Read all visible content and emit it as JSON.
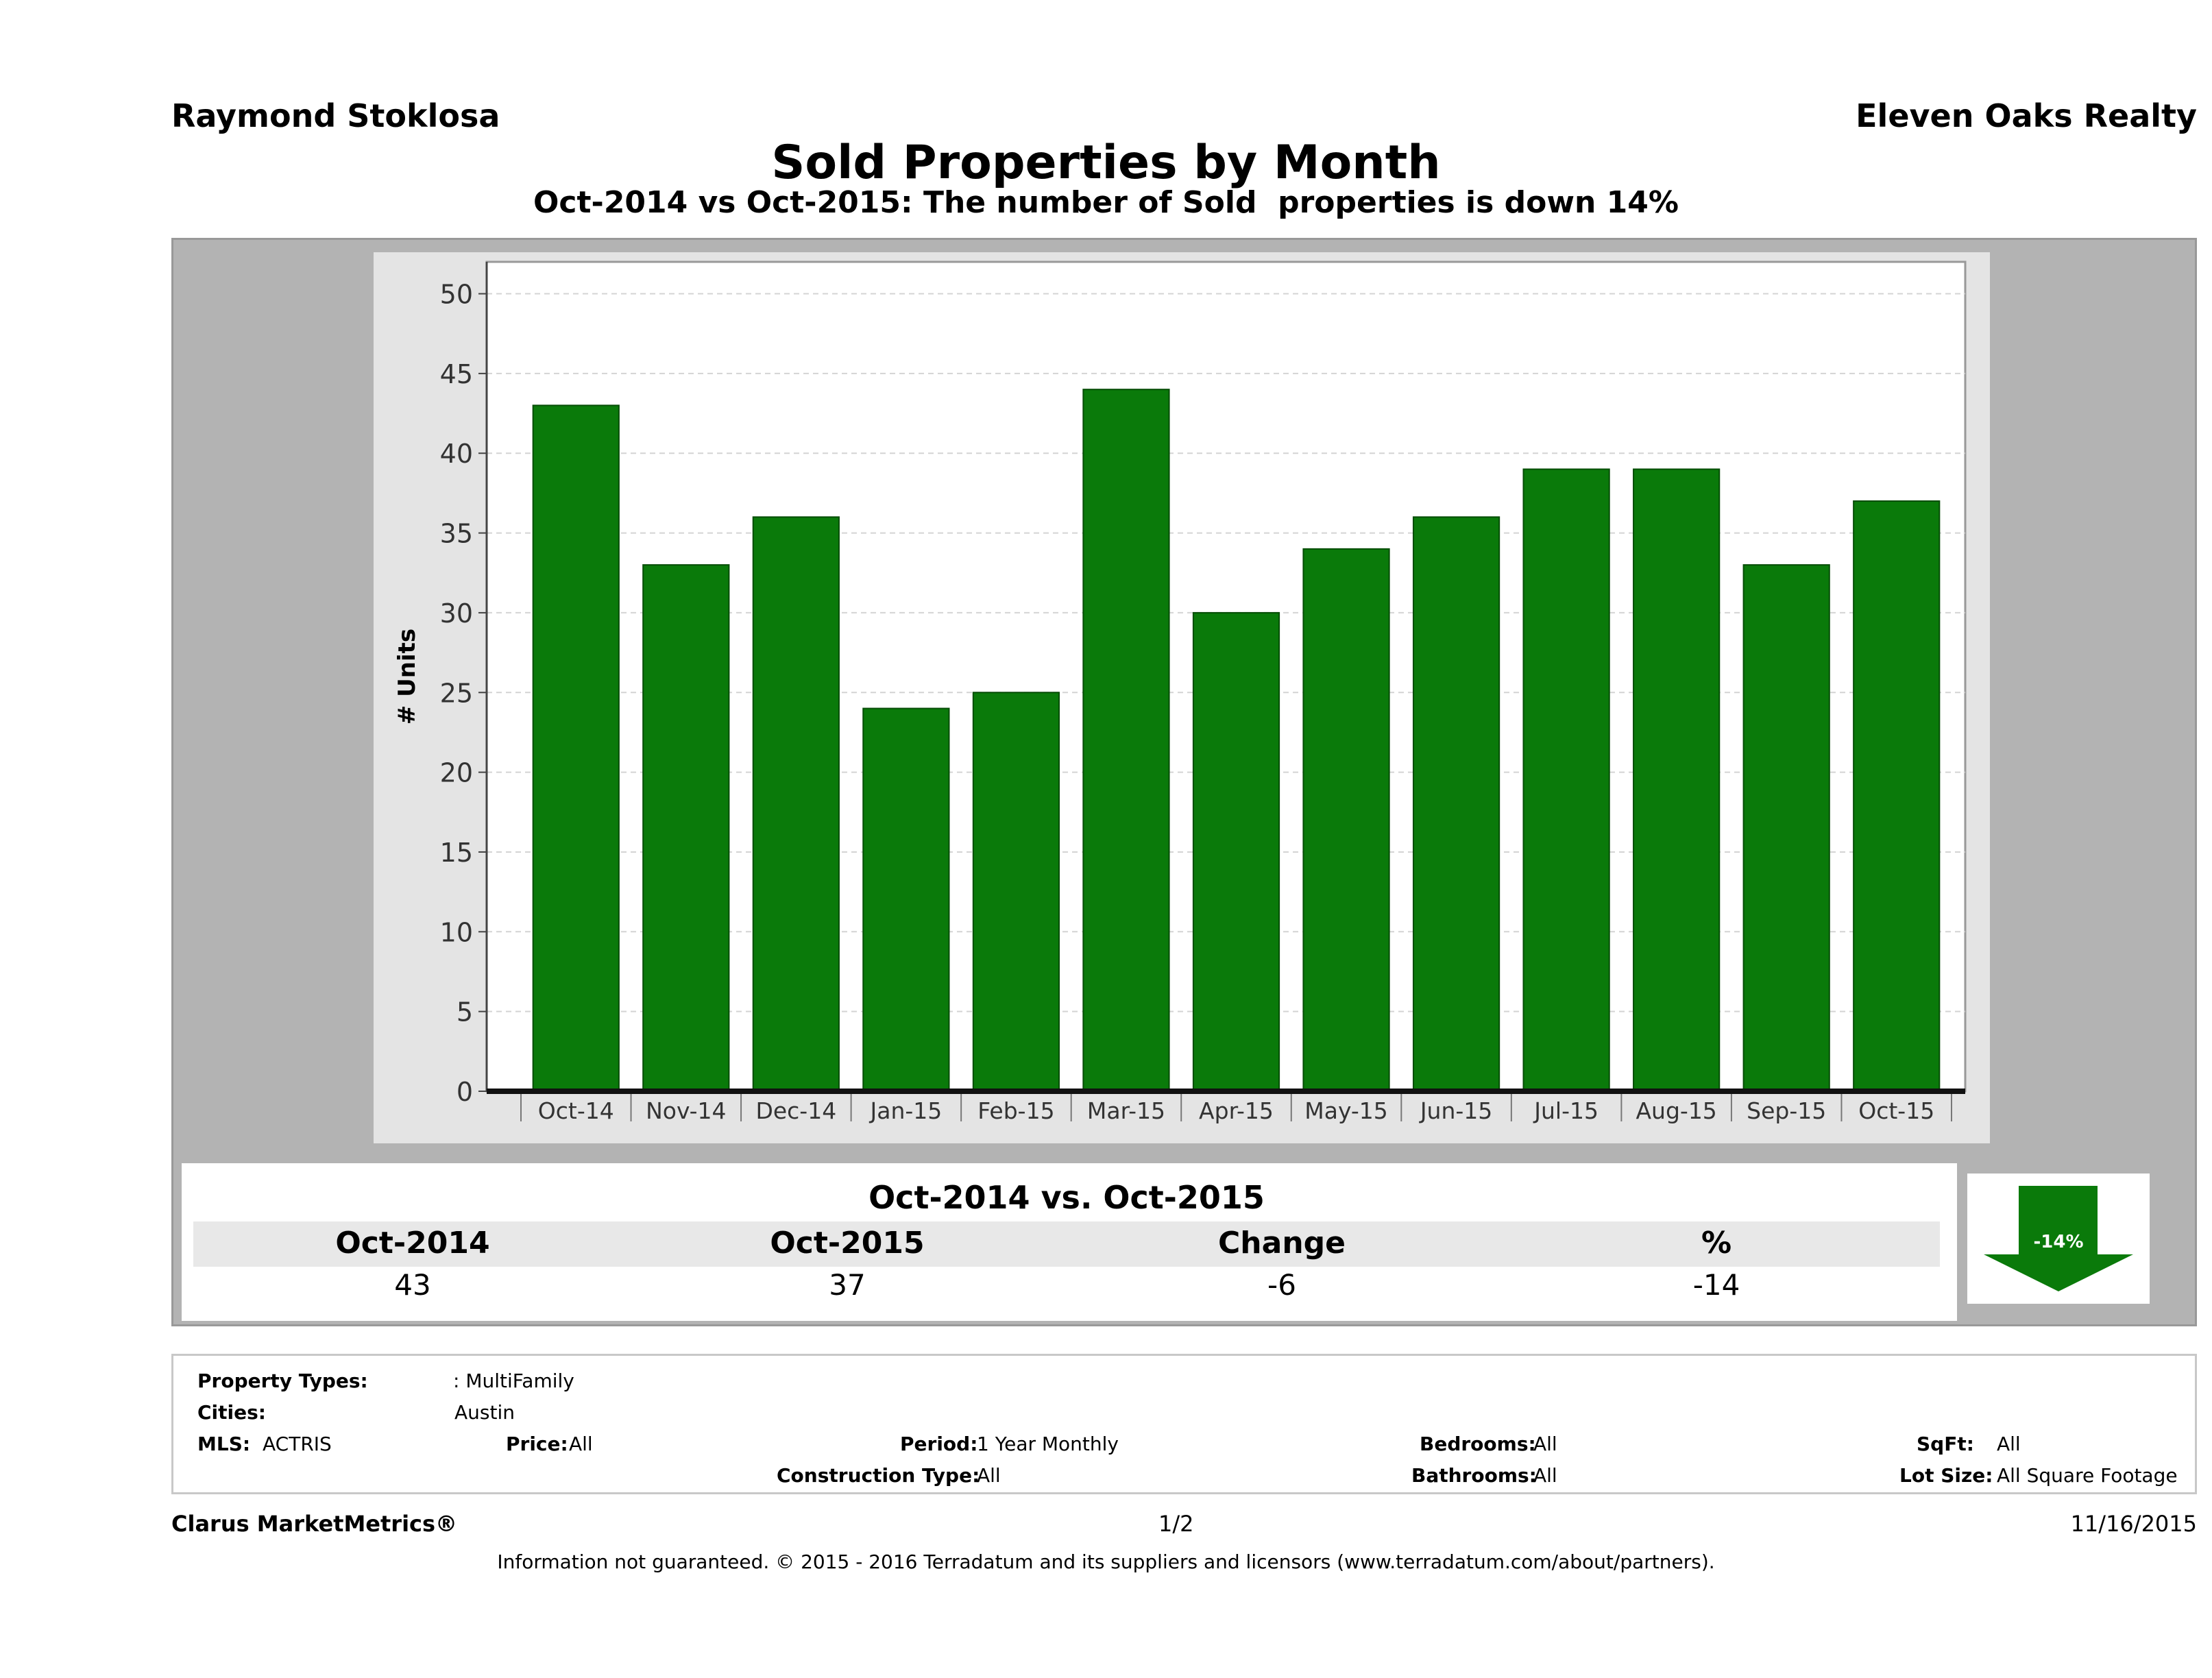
{
  "header": {
    "agent": "Raymond Stoklosa",
    "company": "Eleven Oaks Realty",
    "title": "Sold Properties by Month",
    "subtitle": "Oct-2014 vs Oct-2015: The number of Sold  properties is down 14%"
  },
  "chart_data": {
    "type": "bar",
    "categories": [
      "Oct-14",
      "Nov-14",
      "Dec-14",
      "Jan-15",
      "Feb-15",
      "Mar-15",
      "Apr-15",
      "May-15",
      "Jun-15",
      "Jul-15",
      "Aug-15",
      "Sep-15",
      "Oct-15"
    ],
    "values": [
      43,
      33,
      36,
      24,
      25,
      44,
      30,
      34,
      36,
      39,
      39,
      33,
      37
    ],
    "ylabel": "# Units",
    "ylim": [
      0,
      52
    ],
    "yticks": [
      0,
      5,
      10,
      15,
      20,
      25,
      30,
      35,
      40,
      45,
      50
    ],
    "bar_color": "#0a7a0a",
    "grid": true
  },
  "summary": {
    "title": "Oct-2014 vs. Oct-2015",
    "headers": [
      "Oct-2014",
      "Oct-2015",
      "Change",
      "%"
    ],
    "values": [
      "43",
      "37",
      "-6",
      "-14"
    ],
    "badge": "-14%",
    "badge_color": "#0a7a0a"
  },
  "properties": {
    "property_types_label": "Property Types:",
    "property_types_value": ": MultiFamily",
    "cities_label": "Cities:",
    "cities_value": "Austin",
    "mls_label": "MLS:",
    "mls_value": "ACTRIS",
    "price_label": "Price:",
    "price_value": "All",
    "period_label": "Period:",
    "period_value": "1 Year Monthly",
    "construction_label": "Construction Type:",
    "construction_value": "All",
    "bedrooms_label": "Bedrooms:",
    "bedrooms_value": "All",
    "bathrooms_label": "Bathrooms:",
    "bathrooms_value": "All",
    "sqft_label": "SqFt:",
    "sqft_value": "All",
    "lotsize_label": "Lot Size:",
    "lotsize_value": "All Square Footage"
  },
  "footer": {
    "brand": "Clarus MarketMetrics®",
    "page": "1/2",
    "date": "11/16/2015",
    "disclaimer": "Information not guaranteed. © 2015 - 2016 Terradatum and its suppliers and licensors (www.terradatum.com/about/partners)."
  }
}
